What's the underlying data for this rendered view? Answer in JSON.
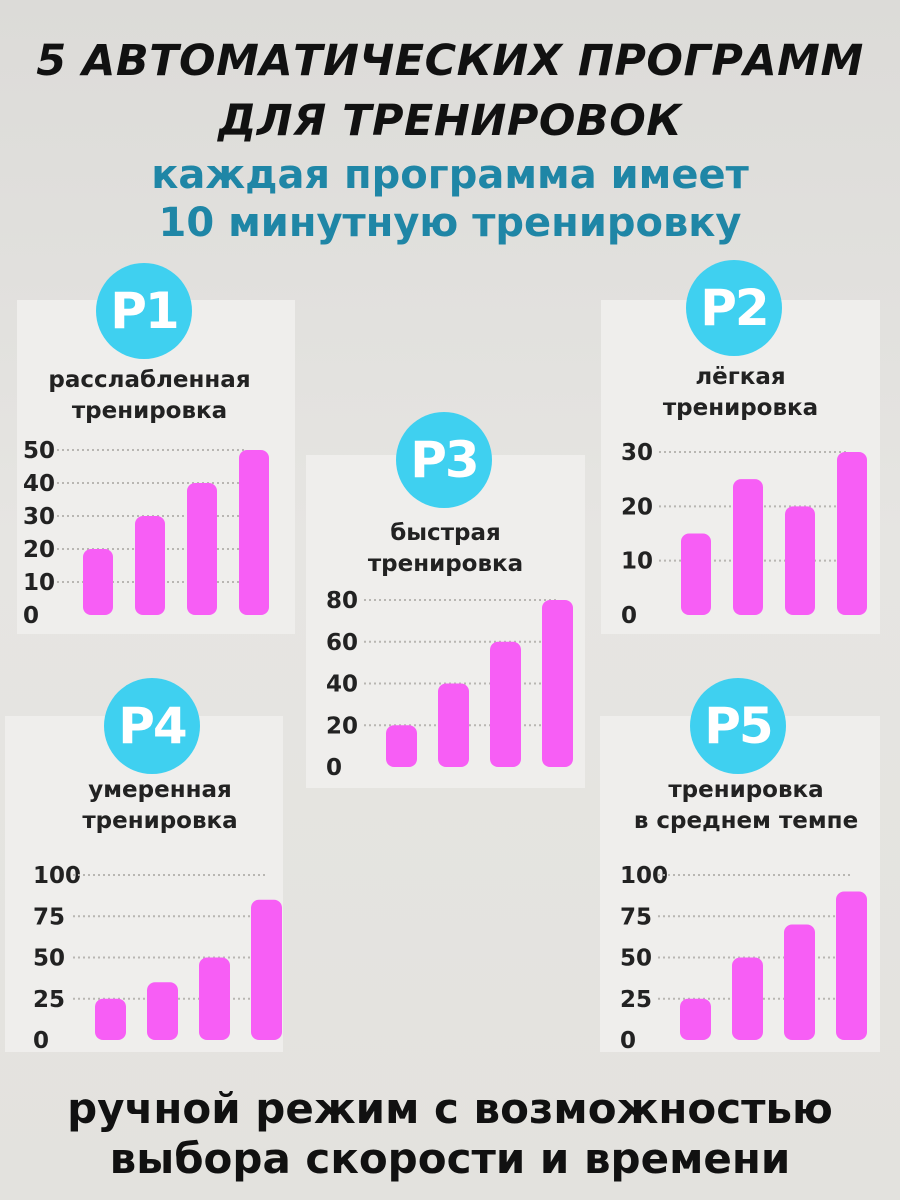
{
  "header": {
    "title_line1": "5 АВТОМАТИЧЕСКИХ ПРОГРАММ",
    "title_line2": "ДЛЯ ТРЕНИРОВОК",
    "subtitle_line1": "каждая программа имеет",
    "subtitle_line2": "10 минутную тренировку"
  },
  "colors": {
    "bar": "#f75ef5",
    "badge": "#3fd0f0",
    "subtitle": "#1f86a6",
    "panel": "#efeeec"
  },
  "chart_data": [
    {
      "type": "bar",
      "badge": "P1",
      "title_line1": "расслабленная",
      "title_line2": "тренировка",
      "ylim": [
        0,
        50
      ],
      "ticks": [
        "50",
        "40",
        "30",
        "20",
        "10",
        "0"
      ],
      "values": [
        20,
        30,
        40,
        50
      ]
    },
    {
      "type": "bar",
      "badge": "P2",
      "title_line1": "лёгкая",
      "title_line2": "тренировка",
      "ylim": [
        0,
        30
      ],
      "ticks": [
        "30",
        "20",
        "10",
        "0"
      ],
      "values": [
        15,
        25,
        20,
        30
      ]
    },
    {
      "type": "bar",
      "badge": "P3",
      "title_line1": "быстрая",
      "title_line2": "тренировка",
      "ylim": [
        0,
        80
      ],
      "ticks": [
        "80",
        "60",
        "40",
        "20",
        "0"
      ],
      "values": [
        20,
        40,
        60,
        80
      ]
    },
    {
      "type": "bar",
      "badge": "P4",
      "title_line1": "умеренная",
      "title_line2": "тренировка",
      "ylim": [
        0,
        100
      ],
      "ticks": [
        "100",
        "75",
        "50",
        "25",
        "0"
      ],
      "values": [
        25,
        35,
        50,
        85
      ]
    },
    {
      "type": "bar",
      "badge": "P5",
      "title_line1": "тренировка",
      "title_line2": "в среднем темпе",
      "ylim": [
        0,
        100
      ],
      "ticks": [
        "100",
        "75",
        "50",
        "25",
        "0"
      ],
      "values": [
        25,
        50,
        70,
        90
      ]
    }
  ],
  "footer": {
    "line1": "ручной режим с возможностью",
    "line2": "выбора скорости и времени"
  }
}
